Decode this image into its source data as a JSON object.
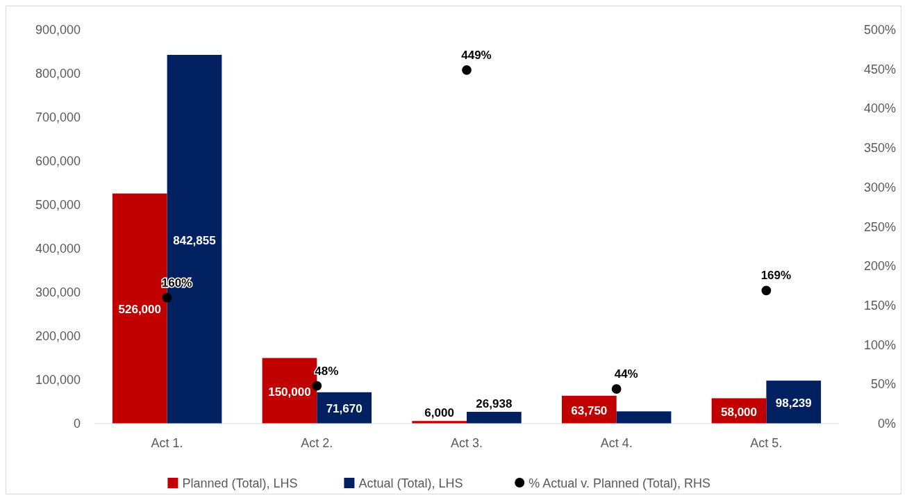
{
  "chart_data": {
    "type": "bar",
    "categories": [
      "Act 1.",
      "Act 2.",
      "Act 3.",
      "Act 4.",
      "Act 5."
    ],
    "series": [
      {
        "name": "Planned (Total), LHS",
        "color": "#c00000",
        "values": [
          526000,
          150000,
          6000,
          63750,
          58000
        ],
        "value_labels": [
          "526,000",
          "150,000",
          "6,000",
          "63,750",
          "58,000"
        ]
      },
      {
        "name": "Actual (Total), LHS",
        "color": "#002060",
        "values": [
          842855,
          71670,
          26938,
          28000,
          98239
        ],
        "value_labels": [
          "842,855",
          "71,670",
          "26,938",
          null,
          "98,239"
        ]
      },
      {
        "name": "% Actual v. Planned (Total), RHS",
        "type": "scatter",
        "axis": "y2",
        "color": "#000000",
        "values": [
          160,
          48,
          449,
          44,
          169
        ],
        "value_labels": [
          "160%",
          "48%",
          "449%",
          "44%",
          "169%"
        ]
      }
    ],
    "ylim": [
      0,
      900000
    ],
    "yticks": [
      {
        "value": 0,
        "label": "0"
      },
      {
        "value": 100000,
        "label": "100,000"
      },
      {
        "value": 200000,
        "label": "200,000"
      },
      {
        "value": 300000,
        "label": "300,000"
      },
      {
        "value": 400000,
        "label": "400,000"
      },
      {
        "value": 500000,
        "label": "500,000"
      },
      {
        "value": 600000,
        "label": "600,000"
      },
      {
        "value": 700000,
        "label": "700,000"
      },
      {
        "value": 800000,
        "label": "800,000"
      },
      {
        "value": 900000,
        "label": "900,000"
      }
    ],
    "y2lim": [
      0,
      500
    ],
    "y2ticks": [
      {
        "value": 0,
        "label": "0%"
      },
      {
        "value": 50,
        "label": "50%"
      },
      {
        "value": 100,
        "label": "100%"
      },
      {
        "value": 150,
        "label": "150%"
      },
      {
        "value": 200,
        "label": "200%"
      },
      {
        "value": 250,
        "label": "250%"
      },
      {
        "value": 300,
        "label": "300%"
      },
      {
        "value": 350,
        "label": "350%"
      },
      {
        "value": 400,
        "label": "400%"
      },
      {
        "value": 450,
        "label": "450%"
      },
      {
        "value": 500,
        "label": "500%"
      }
    ],
    "marker": "circle",
    "grid": false,
    "legend": "bottom"
  }
}
